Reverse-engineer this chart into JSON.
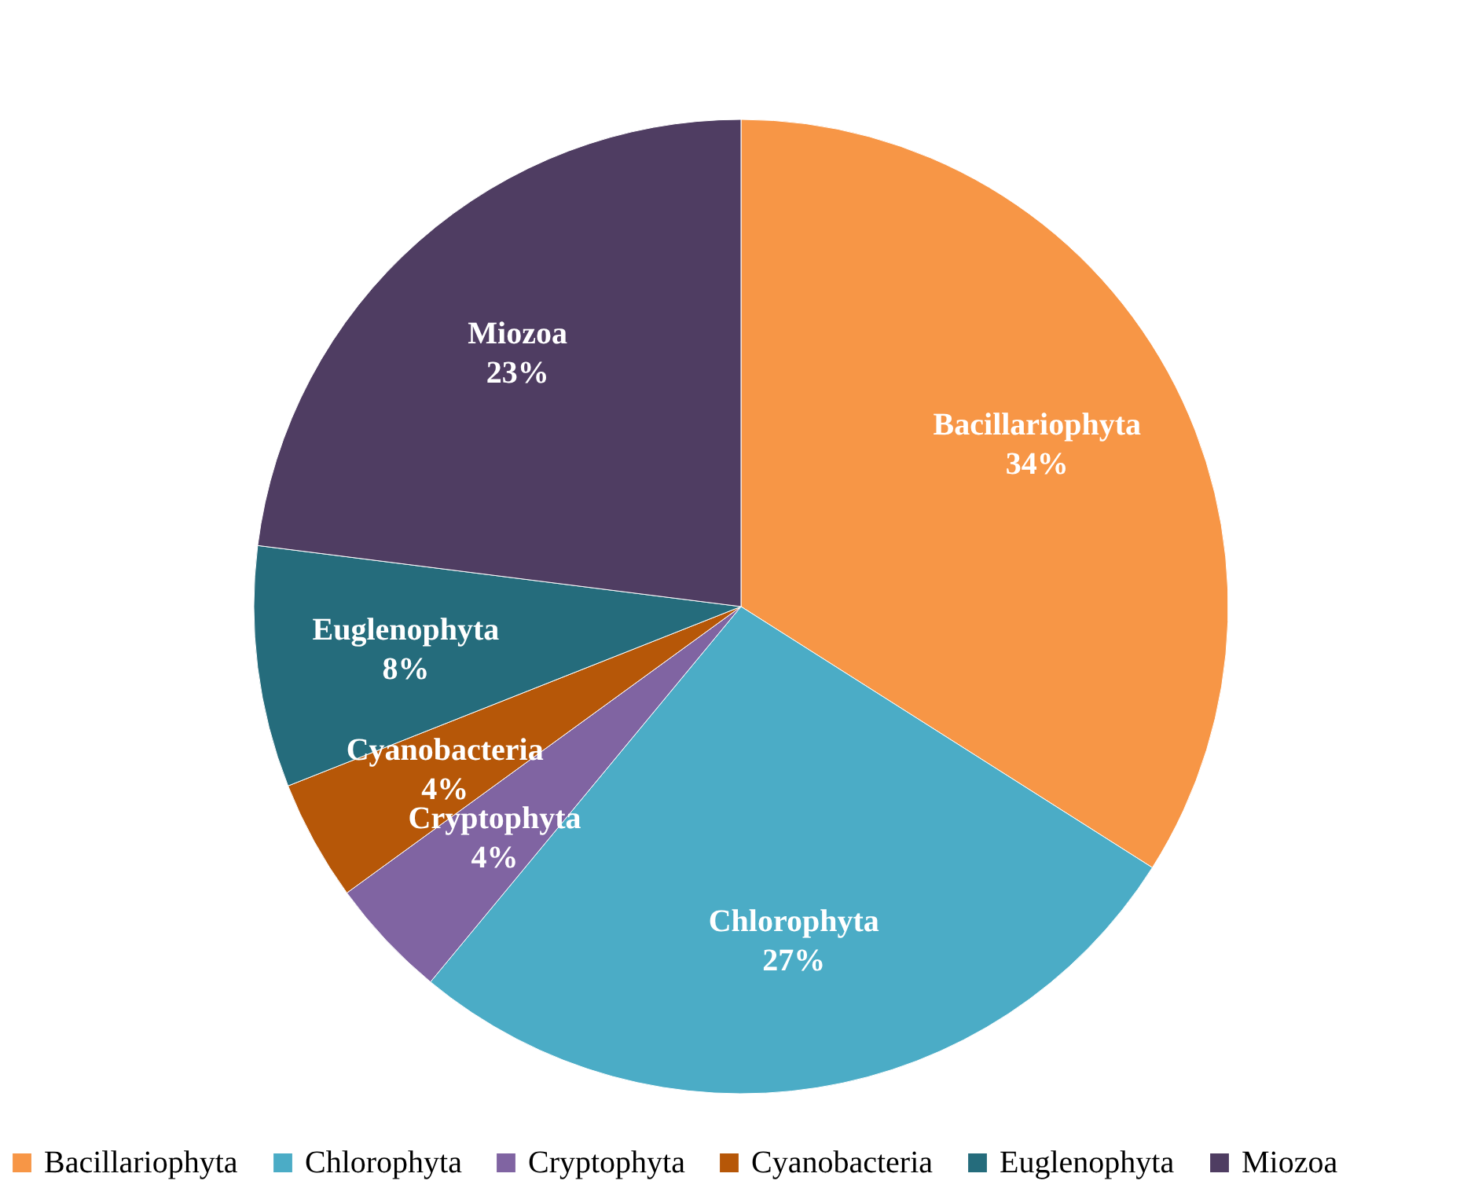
{
  "chart_data": {
    "type": "pie",
    "categories": [
      "Bacillariophyta",
      "Chlorophyta",
      "Cryptophyta",
      "Cyanobacteria",
      "Euglenophyta",
      "Miozoa"
    ],
    "values": [
      34,
      27,
      4,
      4,
      8,
      23
    ],
    "value_labels": [
      "34%",
      "27%",
      "4%",
      "4%",
      "8%",
      "23%"
    ],
    "colors": [
      "#f79646",
      "#4bacc6",
      "#8064a2",
      "#b65708",
      "#256c7c",
      "#4f3d62"
    ],
    "legend": "bottom"
  }
}
